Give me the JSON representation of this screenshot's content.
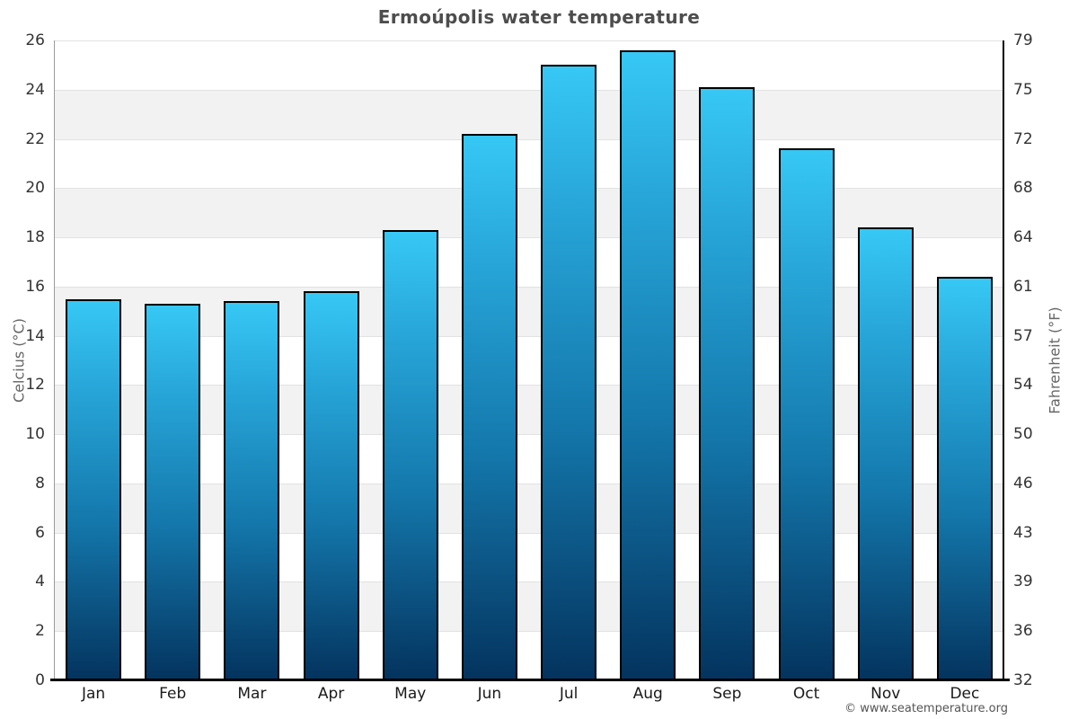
{
  "page": {
    "title": "Ermoúpolis water temperature",
    "footer": "© www.seatemperature.org"
  },
  "chart_data": {
    "type": "bar",
    "title": "Ermoúpolis water temperature",
    "categories": [
      "Jan",
      "Feb",
      "Mar",
      "Apr",
      "May",
      "Jun",
      "Jul",
      "Aug",
      "Sep",
      "Oct",
      "Nov",
      "Dec"
    ],
    "values": [
      15.5,
      15.3,
      15.4,
      15.8,
      18.3,
      22.2,
      25.0,
      25.6,
      24.1,
      21.6,
      18.4,
      16.4
    ],
    "xlabel": "",
    "ylabel_left": "Celcius (°C)",
    "ylabel_right": "Fahrenheit (°F)",
    "ylim": [
      0,
      26
    ],
    "tick_step_celsius": 2,
    "y_ticks_celsius": [
      26,
      24,
      22,
      20,
      18,
      16,
      14,
      12,
      10,
      8,
      6,
      4,
      2,
      0
    ],
    "y_ticks_fahrenheit": [
      79,
      75,
      72,
      68,
      64,
      61,
      57,
      54,
      50,
      46,
      43,
      39,
      36,
      32
    ],
    "grid": true,
    "legend": "none",
    "band_stripes": "alternating horizontal, white and light gray, every 2 °C",
    "colors": {
      "bar_gradient_top": "#37c8f5",
      "bar_gradient_upper": "#28a7da",
      "bar_gradient_lower": "#1478ac",
      "bar_gradient_bottom": "#04335e",
      "bar_border": "#000000",
      "band_stripe": "#f2f2f2",
      "gridline": "#e2e2e2",
      "title_text": "#4d4d4d",
      "axis_text": "#333333",
      "axis_title_text": "#666666",
      "footer_text": "#555555"
    }
  }
}
